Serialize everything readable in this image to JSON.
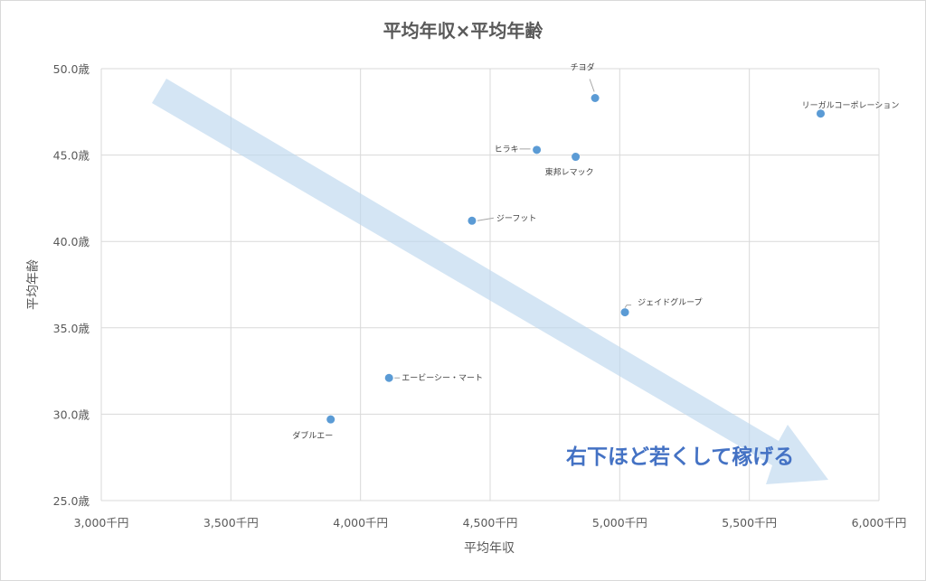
{
  "chart_data": {
    "type": "scatter",
    "title": "平均年収×平均年齢",
    "xlabel": "平均年収",
    "ylabel": "平均年齢",
    "xlim": [
      3000,
      6000
    ],
    "ylim": [
      25,
      50
    ],
    "x_ticks": [
      {
        "value": 3000,
        "label": "3,000千円"
      },
      {
        "value": 3500,
        "label": "3,500千円"
      },
      {
        "value": 4000,
        "label": "4,000千円"
      },
      {
        "value": 4500,
        "label": "4,500千円"
      },
      {
        "value": 5000,
        "label": "5,000千円"
      },
      {
        "value": 5500,
        "label": "5,500千円"
      },
      {
        "value": 6000,
        "label": "6,000千円"
      }
    ],
    "y_ticks": [
      {
        "value": 25,
        "label": "25.0歳"
      },
      {
        "value": 30,
        "label": "30.0歳"
      },
      {
        "value": 35,
        "label": "35.0歳"
      },
      {
        "value": 40,
        "label": "40.0歳"
      },
      {
        "value": 45,
        "label": "45.0歳"
      },
      {
        "value": 50,
        "label": "50.0歳"
      }
    ],
    "grid": true,
    "point_color": "#5b9bd5",
    "arrow_color": "#bdd7ee",
    "annotation_color": "#4472c4",
    "points": [
      {
        "label": "チヨダ",
        "x": 4905,
        "y": 48.3
      },
      {
        "label": "リーガルコーポレーション",
        "x": 5775,
        "y": 47.4
      },
      {
        "label": "ヒラキ",
        "x": 4680,
        "y": 45.3
      },
      {
        "label": "東邦レマック",
        "x": 4830,
        "y": 44.9
      },
      {
        "label": "ジーフット",
        "x": 4430,
        "y": 41.2
      },
      {
        "label": "ジェイドグループ",
        "x": 5020,
        "y": 35.9
      },
      {
        "label": "エービーシー・マート",
        "x": 4110,
        "y": 32.1
      },
      {
        "label": "ダブルエー",
        "x": 3885,
        "y": 29.7
      }
    ],
    "annotation": "右下ほど若くして稼げる"
  }
}
